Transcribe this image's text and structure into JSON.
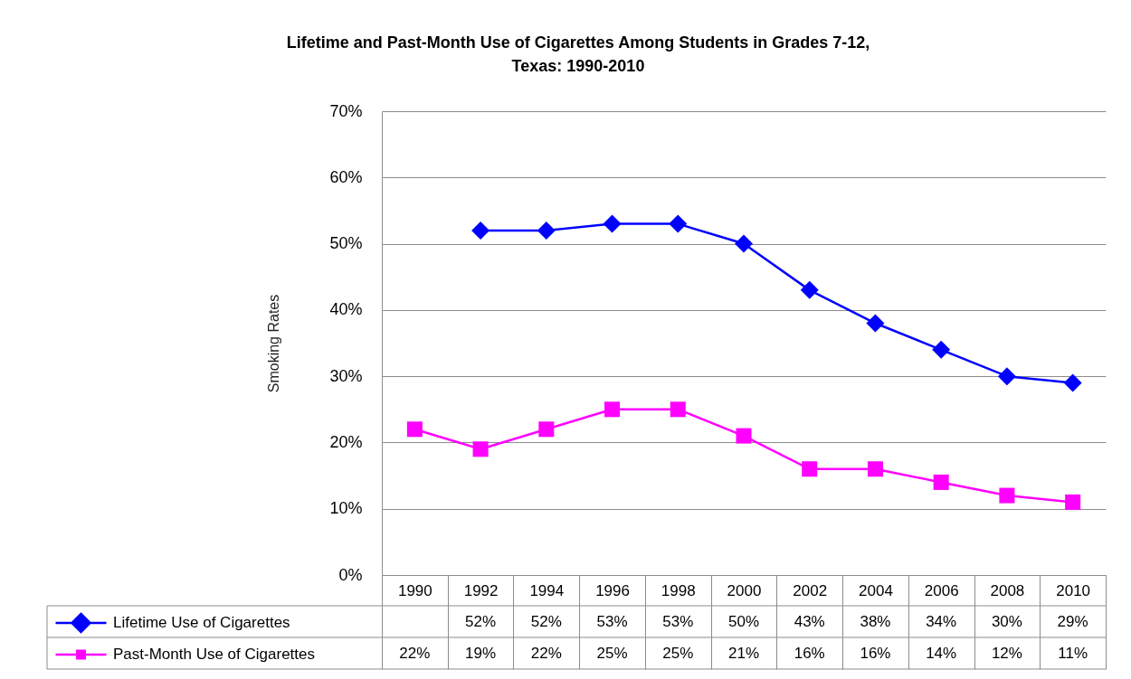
{
  "chart_data": {
    "type": "line",
    "title": "Lifetime and Past-Month Use of Cigarettes Among Students in Grades 7-12,\nTexas: 1990-2010",
    "ylabel": "Smoking Rates",
    "categories": [
      "1990",
      "1992",
      "1994",
      "1996",
      "1998",
      "2000",
      "2002",
      "2004",
      "2006",
      "2008",
      "2010"
    ],
    "series": [
      {
        "name": "Lifetime Use of Cigarettes",
        "color": "#0000ff",
        "marker": "diamond",
        "values": [
          null,
          52,
          52,
          53,
          53,
          50,
          43,
          38,
          34,
          30,
          29
        ],
        "value_labels": [
          null,
          "52%",
          "52%",
          "53%",
          "53%",
          "50%",
          "43%",
          "38%",
          "34%",
          "30%",
          "29%"
        ]
      },
      {
        "name": "Past-Month Use of Cigarettes",
        "color": "#ff00ff",
        "marker": "square",
        "values": [
          22,
          19,
          22,
          25,
          25,
          21,
          16,
          16,
          14,
          12,
          11
        ],
        "value_labels": [
          "22%",
          "19%",
          "22%",
          "25%",
          "25%",
          "21%",
          "16%",
          "16%",
          "14%",
          "12%",
          "11%"
        ]
      }
    ],
    "ylim": [
      0,
      70
    ],
    "yticks": [
      {
        "value": 0,
        "label": "0%"
      },
      {
        "value": 10,
        "label": "10%"
      },
      {
        "value": 20,
        "label": "20%"
      },
      {
        "value": 30,
        "label": "30%"
      },
      {
        "value": 40,
        "label": "40%"
      },
      {
        "value": 50,
        "label": "50%"
      },
      {
        "value": 60,
        "label": "60%"
      },
      {
        "value": 70,
        "label": "70%"
      }
    ],
    "grid": "y",
    "legend": "bottom"
  }
}
